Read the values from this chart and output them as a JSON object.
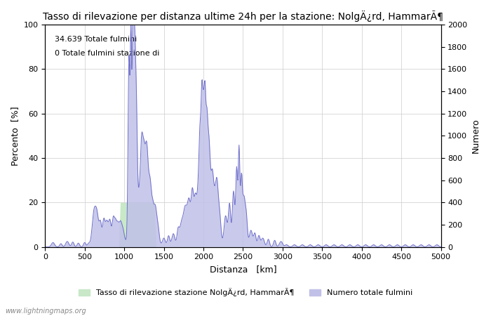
{
  "title": "Tasso di rilevazione per distanza ultime 24h per la stazione: NolgÄ¿rd, HammarÃ¶",
  "xlabel": "Distanza   [km]",
  "ylabel_left": "Percento  [%]",
  "ylabel_right": "Numero",
  "annotation_line1": "34.639 Totale fulmini",
  "annotation_line2": "0 Totale fulmini stazione di",
  "legend_green": "Tasso di rilevazione stazione NolgÄ¿rd, HammarÃ¶",
  "legend_blue": "Numero totale fulmini",
  "watermark": "www.lightningmaps.org",
  "xlim": [
    0,
    5000
  ],
  "ylim_left": [
    0,
    100
  ],
  "ylim_right": [
    0,
    2000
  ],
  "xticks": [
    0,
    500,
    1000,
    1500,
    2000,
    2500,
    3000,
    3500,
    4000,
    4500,
    5000
  ],
  "yticks_left": [
    0,
    20,
    40,
    60,
    80,
    100
  ],
  "yticks_right": [
    0,
    200,
    400,
    600,
    800,
    1000,
    1200,
    1400,
    1600,
    1800,
    2000
  ],
  "color_green": "#c8e8c8",
  "color_blue": "#c0c0e8",
  "color_line_blue": "#7070cc",
  "background_color": "#ffffff",
  "grid_color": "#cccccc"
}
